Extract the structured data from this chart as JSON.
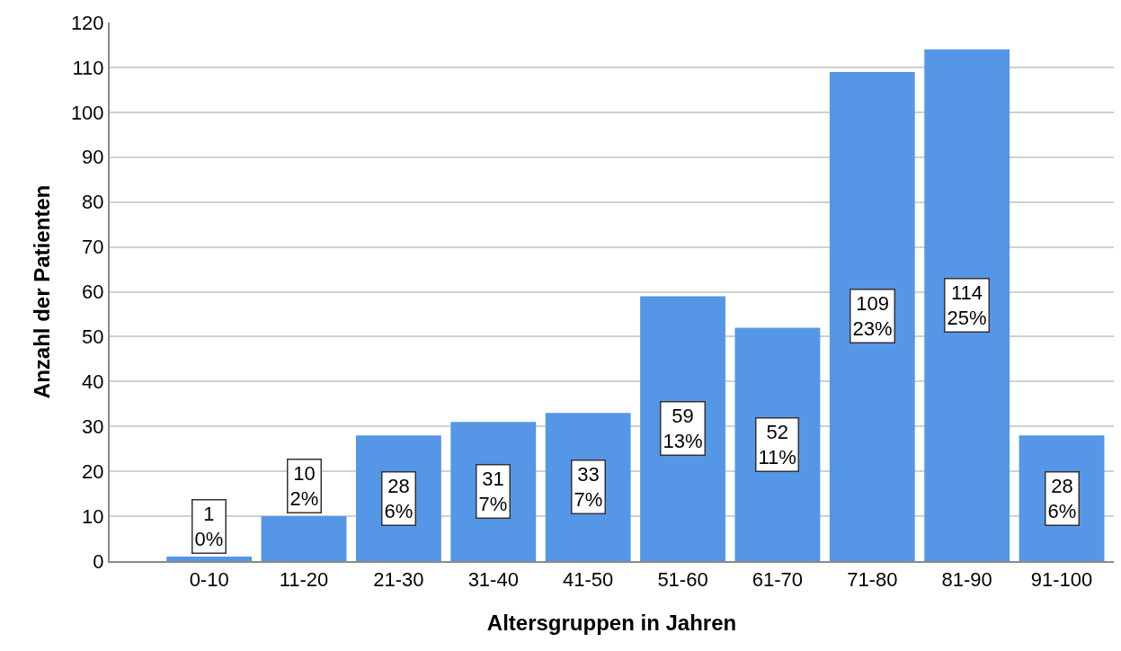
{
  "chart_data": {
    "type": "bar",
    "xlabel": "Altersgruppen in Jahren",
    "ylabel": "Anzahl der Patienten",
    "categories": [
      "0-10",
      "11-20",
      "21-30",
      "31-40",
      "41-50",
      "51-60",
      "61-70",
      "71-80",
      "81-90",
      "91-100"
    ],
    "values": [
      1,
      10,
      28,
      31,
      33,
      59,
      52,
      109,
      114,
      28
    ],
    "color": "#5596e6",
    "value_labels": [
      "1\n0%",
      "10\n2%",
      "28\n6%",
      "31\n7%",
      "33\n7%",
      "59\n13%",
      "52\n11%",
      "109\n23%",
      "114\n25%",
      "28\n6%"
    ],
    "ylim": [
      0,
      120
    ],
    "yticks": [
      0,
      10,
      20,
      30,
      40,
      50,
      60,
      70,
      80,
      90,
      100,
      110,
      120
    ],
    "grid": "y"
  }
}
